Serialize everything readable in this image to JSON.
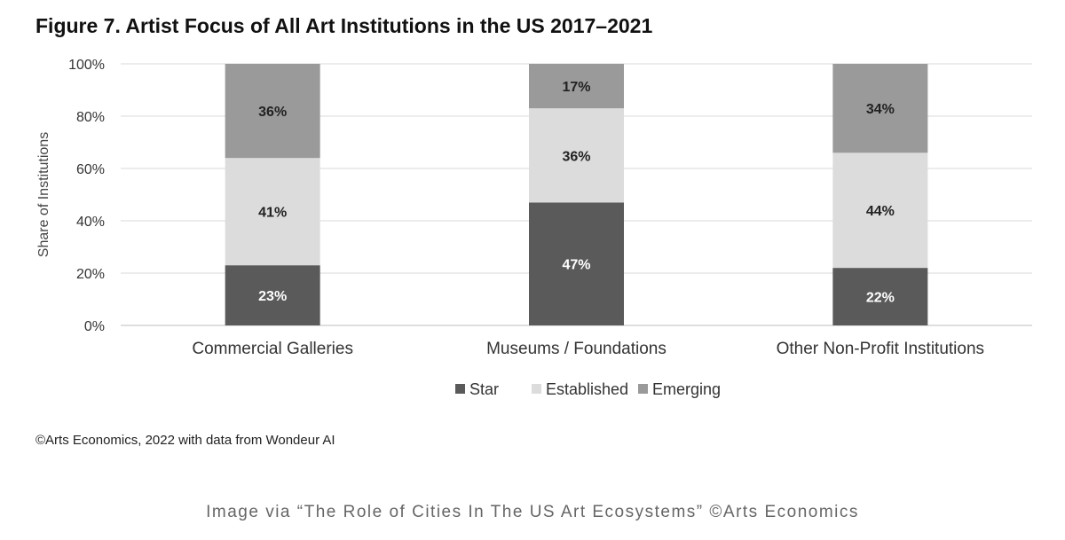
{
  "chart_data": {
    "type": "bar",
    "stacked": true,
    "title": "Figure 7. Artist Focus of All Art Institutions in the US 2017–2021",
    "xlabel": "",
    "ylabel": "Share of Institutions",
    "ylim": [
      0,
      100
    ],
    "yticks": [
      "0%",
      "20%",
      "40%",
      "60%",
      "80%",
      "100%"
    ],
    "grid": true,
    "legend_position": "bottom",
    "categories": [
      "Commercial Galleries",
      "Museums / Foundations",
      "Other Non-Profit Institutions"
    ],
    "series": [
      {
        "name": "Star",
        "color": "#5a5a5a",
        "label_color": "#ffffff",
        "values": [
          23,
          47,
          22
        ]
      },
      {
        "name": "Established",
        "color": "#dcdcdc",
        "label_color": "#222222",
        "values": [
          41,
          36,
          44
        ]
      },
      {
        "name": "Emerging",
        "color": "#9a9a9a",
        "label_color": "#222222",
        "values": [
          36,
          17,
          34
        ]
      }
    ]
  },
  "source_note": "©Arts Economics, 2022 with data from Wondeur AI",
  "caption": "Image via “The Role of Cities In The US Art Ecosystems” ©Arts Economics"
}
